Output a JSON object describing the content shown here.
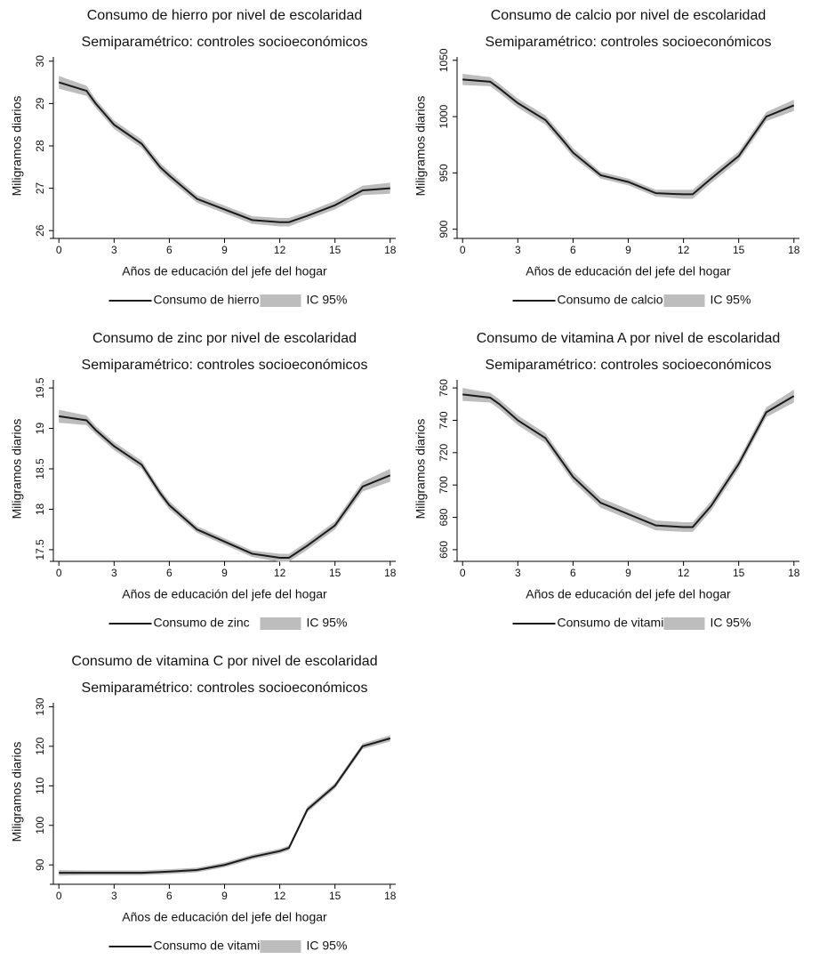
{
  "chart_data": [
    {
      "type": "line",
      "title": "Consumo de hierro por nivel de escolaridad",
      "subtitle": "Semiparamétrico: controles socioeconómicos",
      "x_label": "Años de educación del jefe del hogar",
      "y_label": "Miligramos diarios",
      "x": [
        0,
        1.5,
        2,
        3,
        4.5,
        5.5,
        6,
        7.5,
        9,
        10.5,
        12,
        12.5,
        13.5,
        15,
        16.5,
        18
      ],
      "series": [
        {
          "name": "Consumo de hierro",
          "color": "#1a1a1a",
          "values": [
            29.5,
            29.3,
            29.0,
            28.5,
            28.05,
            27.5,
            27.3,
            26.75,
            26.5,
            26.25,
            26.2,
            26.2,
            26.35,
            26.6,
            26.95,
            27.0
          ]
        }
      ],
      "band": {
        "name": "IC 95%",
        "color": "#bdbdbd",
        "lower": [
          29.35,
          29.18,
          28.9,
          28.4,
          27.95,
          27.4,
          27.2,
          26.66,
          26.41,
          26.16,
          26.1,
          26.1,
          26.26,
          26.5,
          26.84,
          26.87
        ],
        "upper": [
          29.65,
          29.42,
          29.1,
          28.6,
          28.15,
          27.6,
          27.4,
          26.84,
          26.59,
          26.34,
          26.3,
          26.3,
          26.44,
          26.7,
          27.06,
          27.13
        ]
      },
      "xlim": [
        -0.3,
        18.3
      ],
      "xticks": [
        0,
        3,
        6,
        9,
        12,
        15,
        18
      ],
      "ylim": [
        25.9,
        30.1
      ],
      "yticks": [
        26,
        27,
        28,
        29,
        30
      ]
    },
    {
      "type": "line",
      "title": "Consumo de calcio por nivel de escolaridad",
      "subtitle": "Semiparamétrico: controles socioeconómicos",
      "x_label": "Años de educación del jefe del hogar",
      "y_label": "Miligramos diarios",
      "x": [
        0,
        1.5,
        2,
        3,
        4.5,
        5.5,
        6,
        7.5,
        9,
        10.5,
        12,
        12.5,
        13.5,
        15,
        16.5,
        18
      ],
      "series": [
        {
          "name": "Consumo de calcio",
          "color": "#1a1a1a",
          "values": [
            1033,
            1031,
            1025,
            1012,
            997,
            978,
            968,
            948,
            942,
            932,
            931,
            931,
            945,
            965,
            1000,
            1010
          ]
        }
      ],
      "band": {
        "name": "IC 95%",
        "color": "#bdbdbd",
        "lower": [
          1028,
          1027,
          1021,
          1008,
          993,
          974,
          964,
          945,
          939,
          929,
          927,
          927,
          941,
          961,
          996,
          1005
        ],
        "upper": [
          1038,
          1035,
          1029,
          1016,
          1001,
          982,
          972,
          951,
          945,
          935,
          935,
          935,
          949,
          969,
          1004,
          1015
        ]
      },
      "xlim": [
        -0.3,
        18.3
      ],
      "xticks": [
        0,
        3,
        6,
        9,
        12,
        15,
        18
      ],
      "ylim": [
        895,
        1053
      ],
      "yticks": [
        900,
        950,
        1000,
        1050
      ]
    },
    {
      "type": "line",
      "title": "Consumo de zinc por nivel de escolaridad",
      "subtitle": "Semiparamétrico: controles socioeconómicos",
      "x_label": "Años de educación del jefe del hogar",
      "y_label": "Miligramos diarios",
      "x": [
        0,
        1.5,
        2,
        3,
        4.5,
        5.5,
        6,
        7.5,
        9,
        10.5,
        12,
        12.5,
        13.5,
        15,
        16.5,
        18
      ],
      "series": [
        {
          "name": "Consumo de zinc",
          "color": "#1a1a1a",
          "values": [
            19.15,
            19.1,
            18.98,
            18.78,
            18.55,
            18.2,
            18.05,
            17.75,
            17.6,
            17.45,
            17.4,
            17.4,
            17.55,
            17.8,
            18.28,
            18.42
          ]
        }
      ],
      "band": {
        "name": "IC 95%",
        "color": "#bdbdbd",
        "lower": [
          19.07,
          19.04,
          18.93,
          18.73,
          18.5,
          18.15,
          18.0,
          17.71,
          17.56,
          17.41,
          17.35,
          17.35,
          17.5,
          17.75,
          18.22,
          18.34
        ],
        "upper": [
          19.23,
          19.16,
          19.03,
          18.83,
          18.6,
          18.25,
          18.1,
          17.79,
          17.64,
          17.49,
          17.45,
          17.45,
          17.6,
          17.85,
          18.34,
          18.5
        ]
      },
      "xlim": [
        -0.3,
        18.3
      ],
      "xticks": [
        0,
        3,
        6,
        9,
        12,
        15,
        18
      ],
      "ylim": [
        17.4,
        19.6
      ],
      "yticks": [
        17.5,
        18,
        18.5,
        19,
        19.5
      ]
    },
    {
      "type": "line",
      "title": "Consumo de vitamina A por nivel de escolaridad",
      "subtitle": "Semiparamétrico: controles socioeconómicos",
      "x_label": "Años de educación del jefe del hogar",
      "y_label": "Miligramos diarios",
      "x": [
        0,
        1.5,
        2,
        3,
        4.5,
        5.5,
        6,
        7.5,
        9,
        10.5,
        12,
        12.5,
        13.5,
        15,
        16.5,
        18
      ],
      "series": [
        {
          "name": "Consumo de vitamina A",
          "color": "#1a1a1a",
          "values": [
            756,
            754,
            750,
            740,
            729,
            713,
            705,
            689,
            682,
            675,
            674,
            674,
            687,
            713,
            745,
            755
          ]
        }
      ],
      "band": {
        "name": "IC 95%",
        "color": "#bdbdbd",
        "lower": [
          752,
          751,
          747,
          737,
          726,
          710,
          702,
          686,
          679,
          672,
          671,
          671,
          684,
          710,
          742,
          751
        ],
        "upper": [
          760,
          757,
          753,
          743,
          732,
          716,
          708,
          692,
          685,
          678,
          677,
          677,
          690,
          716,
          748,
          759
        ]
      },
      "xlim": [
        -0.3,
        18.3
      ],
      "xticks": [
        0,
        3,
        6,
        9,
        12,
        15,
        18
      ],
      "ylim": [
        655,
        765
      ],
      "yticks": [
        660,
        680,
        700,
        720,
        740,
        760
      ]
    },
    {
      "type": "line",
      "title": "Consumo de vitamina C por nivel de escolaridad",
      "subtitle": "Semiparamétrico: controles socioeconómicos",
      "x_label": "Años de educación del jefe del hogar",
      "y_label": "Miligramos diarios",
      "x": [
        0,
        1.5,
        2,
        3,
        4.5,
        5.5,
        6,
        7.5,
        9,
        10.5,
        12,
        12.5,
        13.5,
        15,
        16.5,
        18
      ],
      "series": [
        {
          "name": "Consumo de vitamina C",
          "color": "#1a1a1a",
          "values": [
            88,
            88,
            88,
            88,
            88,
            88.2,
            88.3,
            88.7,
            90,
            92,
            93.5,
            94.3,
            104,
            110,
            120,
            122
          ]
        }
      ],
      "band": {
        "name": "IC 95%",
        "color": "#bdbdbd",
        "lower": [
          87.3,
          87.4,
          87.4,
          87.4,
          87.4,
          87.6,
          87.7,
          88.1,
          89.4,
          91.4,
          92.9,
          93.7,
          103.3,
          109.3,
          119.3,
          121.2
        ],
        "upper": [
          88.7,
          88.6,
          88.6,
          88.6,
          88.6,
          88.8,
          88.9,
          89.3,
          90.6,
          92.6,
          94.1,
          94.9,
          104.7,
          110.7,
          120.7,
          122.8
        ]
      },
      "xlim": [
        -0.3,
        18.3
      ],
      "xticks": [
        0,
        3,
        6,
        9,
        12,
        15,
        18
      ],
      "ylim": [
        86,
        131
      ],
      "yticks": [
        90,
        100,
        110,
        120,
        130
      ]
    }
  ]
}
